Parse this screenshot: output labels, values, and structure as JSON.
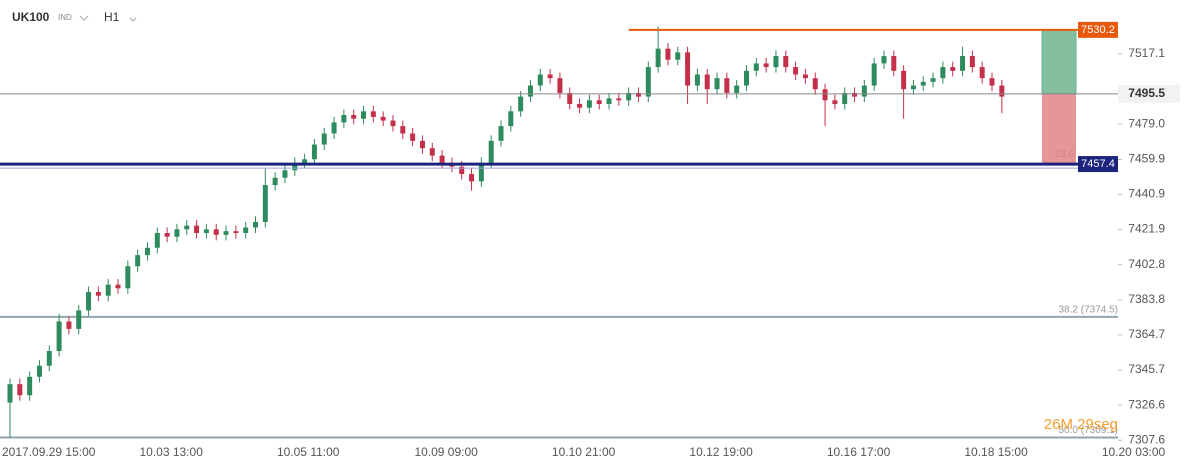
{
  "header": {
    "symbol": "UK100",
    "market": "IND",
    "timeframe": "H1"
  },
  "chart_data": {
    "type": "candlestick",
    "categories": [
      "2017.09.29 15:00",
      null,
      null,
      null,
      null,
      null,
      null,
      null,
      null,
      null,
      null,
      null,
      null,
      null,
      "10.03 13:00",
      null,
      null,
      null,
      null,
      null,
      null,
      null,
      null,
      null,
      null,
      null,
      null,
      null,
      "10.05 11:00",
      null,
      null,
      null,
      null,
      null,
      null,
      null,
      null,
      null,
      null,
      null,
      null,
      null,
      "10.09 09:00",
      null,
      null,
      null,
      null,
      null,
      null,
      null,
      null,
      null,
      null,
      null,
      null,
      null,
      "10.10 21:00",
      null,
      null,
      null,
      null,
      null,
      null,
      null,
      null,
      null,
      null,
      null,
      null,
      null,
      "10.12 19:00",
      null,
      null,
      null,
      null,
      null,
      null,
      null,
      null,
      null,
      null,
      null,
      null,
      null,
      "10.16 17:00",
      null,
      null,
      null,
      null,
      null,
      null,
      null,
      null,
      null,
      null,
      null,
      null,
      null,
      "10.18 15:00",
      null,
      null,
      null,
      null,
      null,
      null,
      null,
      null,
      null,
      null,
      null,
      null,
      null,
      "10.20 03:00"
    ],
    "open": [
      7328,
      7338,
      7332,
      7342,
      7348,
      7356,
      7372,
      7368,
      7378,
      7388,
      7386,
      7392,
      7390,
      7402,
      7408,
      7412,
      7420,
      7418,
      7422,
      7424,
      7420,
      7422,
      7419,
      7421,
      7420,
      7423,
      7426,
      7446,
      7450,
      7454,
      7458,
      7460,
      7468,
      7474,
      7480,
      7484,
      7482,
      7486,
      7483,
      7481,
      7478,
      7474,
      7470,
      7466,
      7462,
      7458,
      7456,
      7452,
      7448,
      7458,
      7470,
      7478,
      7486,
      7494,
      7500,
      7506,
      7504,
      7496,
      7490,
      7488,
      7492,
      7490,
      7493,
      7492,
      7496,
      7494,
      7510,
      7520,
      7514,
      7518,
      7500,
      7506,
      7498,
      7504,
      7496,
      7500,
      7508,
      7512,
      7510,
      7516,
      7510,
      7506,
      7504,
      7498,
      7492,
      7490,
      7496,
      7494,
      7500,
      7512,
      7516,
      7508,
      7498,
      7500,
      7502,
      7504,
      7510,
      7508,
      7516,
      7510,
      7504,
      7500,
      null,
      null,
      null,
      null,
      null,
      null,
      null,
      null,
      null,
      null,
      null
    ],
    "high": [
      7341,
      7341,
      7345,
      7351,
      7359,
      7376,
      7375,
      7381,
      7391,
      7391,
      7395,
      7395,
      7405,
      7411,
      7415,
      7423,
      7423,
      7425,
      7427,
      7427,
      7425,
      7425,
      7424,
      7424,
      7426,
      7429,
      7455,
      7453,
      7457,
      7461,
      7463,
      7471,
      7477,
      7483,
      7487,
      7487,
      7489,
      7489,
      7486,
      7484,
      7481,
      7477,
      7473,
      7469,
      7465,
      7461,
      7459,
      7455,
      7461,
      7473,
      7481,
      7489,
      7497,
      7503,
      7509,
      7509,
      7507,
      7499,
      7493,
      7495,
      7495,
      7496,
      7496,
      7499,
      7499,
      7513,
      7532,
      7523,
      7521,
      7521,
      7509,
      7509,
      7507,
      7507,
      7503,
      7511,
      7515,
      7515,
      7519,
      7519,
      7513,
      7509,
      7507,
      7501,
      7495,
      7499,
      7499,
      7503,
      7515,
      7519,
      7519,
      7511,
      7503,
      7505,
      7507,
      7513,
      7513,
      7521,
      7519,
      7513,
      7507,
      7503,
      null,
      null,
      null,
      null,
      null,
      null,
      null,
      null,
      null,
      null,
      null
    ],
    "low": [
      7309,
      7329,
      7329,
      7339,
      7345,
      7353,
      7365,
      7365,
      7375,
      7383,
      7383,
      7387,
      7387,
      7399,
      7405,
      7409,
      7415,
      7415,
      7419,
      7417,
      7417,
      7416,
      7416,
      7417,
      7417,
      7420,
      7423,
      7443,
      7447,
      7451,
      7455,
      7457,
      7465,
      7471,
      7477,
      7479,
      7479,
      7480,
      7478,
      7475,
      7471,
      7467,
      7463,
      7459,
      7455,
      7453,
      7449,
      7443,
      7445,
      7455,
      7467,
      7475,
      7483,
      7491,
      7497,
      7501,
      7493,
      7487,
      7485,
      7485,
      7487,
      7487,
      7489,
      7489,
      7491,
      7491,
      7507,
      7511,
      7511,
      7490,
      7497,
      7490,
      7495,
      7493,
      7493,
      7497,
      7505,
      7507,
      7507,
      7507,
      7503,
      7501,
      7495,
      7478,
      7487,
      7487,
      7491,
      7491,
      7497,
      7509,
      7505,
      7482,
      7495,
      7497,
      7499,
      7501,
      7505,
      7505,
      7507,
      7501,
      7497,
      7485,
      null,
      null,
      null,
      null,
      null,
      null,
      null,
      null,
      null,
      null,
      null
    ],
    "close": [
      7338,
      7332,
      7342,
      7348,
      7356,
      7372,
      7368,
      7378,
      7388,
      7386,
      7392,
      7390,
      7402,
      7408,
      7412,
      7420,
      7418,
      7422,
      7424,
      7420,
      7422,
      7419,
      7421,
      7420,
      7423,
      7426,
      7446,
      7450,
      7454,
      7458,
      7460,
      7468,
      7474,
      7480,
      7484,
      7482,
      7486,
      7483,
      7481,
      7478,
      7474,
      7470,
      7466,
      7462,
      7458,
      7456,
      7452,
      7448,
      7458,
      7470,
      7478,
      7486,
      7494,
      7500,
      7506,
      7504,
      7496,
      7490,
      7488,
      7492,
      7490,
      7493,
      7492,
      7496,
      7494,
      7510,
      7520,
      7514,
      7518,
      7500,
      7506,
      7498,
      7504,
      7496,
      7500,
      7508,
      7512,
      7510,
      7516,
      7510,
      7506,
      7504,
      7498,
      7492,
      7490,
      7496,
      7494,
      7500,
      7512,
      7516,
      7508,
      7498,
      7500,
      7502,
      7504,
      7510,
      7508,
      7516,
      7510,
      7504,
      7500,
      7494,
      null,
      null,
      null,
      null,
      null,
      null,
      null,
      null,
      null,
      null,
      null
    ],
    "up_color": "#2e8b5e",
    "down_color": "#c42f4a",
    "ylim": [
      7305,
      7546.4
    ],
    "yticks": [
      7307.6,
      7326.6,
      7345.7,
      7364.7,
      7383.8,
      7402.8,
      7421.9,
      7440.9,
      7459.9,
      {
        "value": 7479,
        "label": "7479.0"
      },
      7517.1
    ],
    "last_price": 7495.5,
    "resistance": {
      "value": 7530.2,
      "color": "#e8590c"
    },
    "support": {
      "value": 7457.4,
      "color": "#1a237e"
    },
    "fibonacci": [
      {
        "value": 7459,
        "label": "23.6"
      },
      {
        "value": 7374.5,
        "label": "38.2 (7374.5)"
      },
      {
        "value": 7309.1,
        "label": "50.0 (7309.1)"
      }
    ],
    "timer": "26M 29seg"
  }
}
